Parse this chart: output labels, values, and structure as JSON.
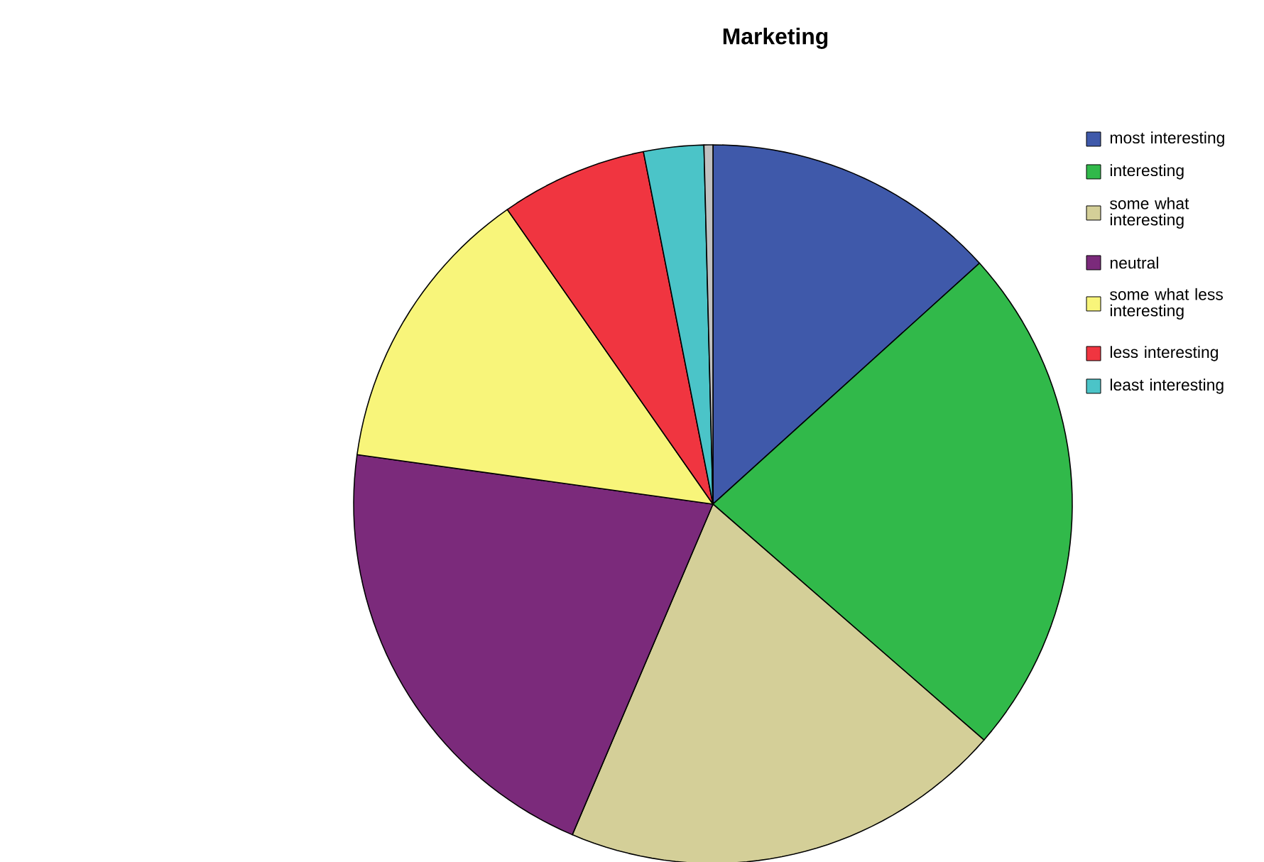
{
  "chart_data": {
    "type": "pie",
    "title": "Marketing",
    "categories": [
      "most interesting",
      "interesting",
      "some what interesting",
      "neutral",
      "some what less interesting",
      "less interesting",
      "least interesting",
      null
    ],
    "values": [
      13.3,
      23.1,
      20.0,
      20.8,
      13.1,
      6.6,
      2.7,
      0.4
    ],
    "colors": [
      "#3f59aa",
      "#31b94a",
      "#d4cf98",
      "#7b2a7b",
      "#f8f57a",
      "#f03540",
      "#4bc4c8",
      "#c0c0c0"
    ],
    "legend": "top right"
  }
}
